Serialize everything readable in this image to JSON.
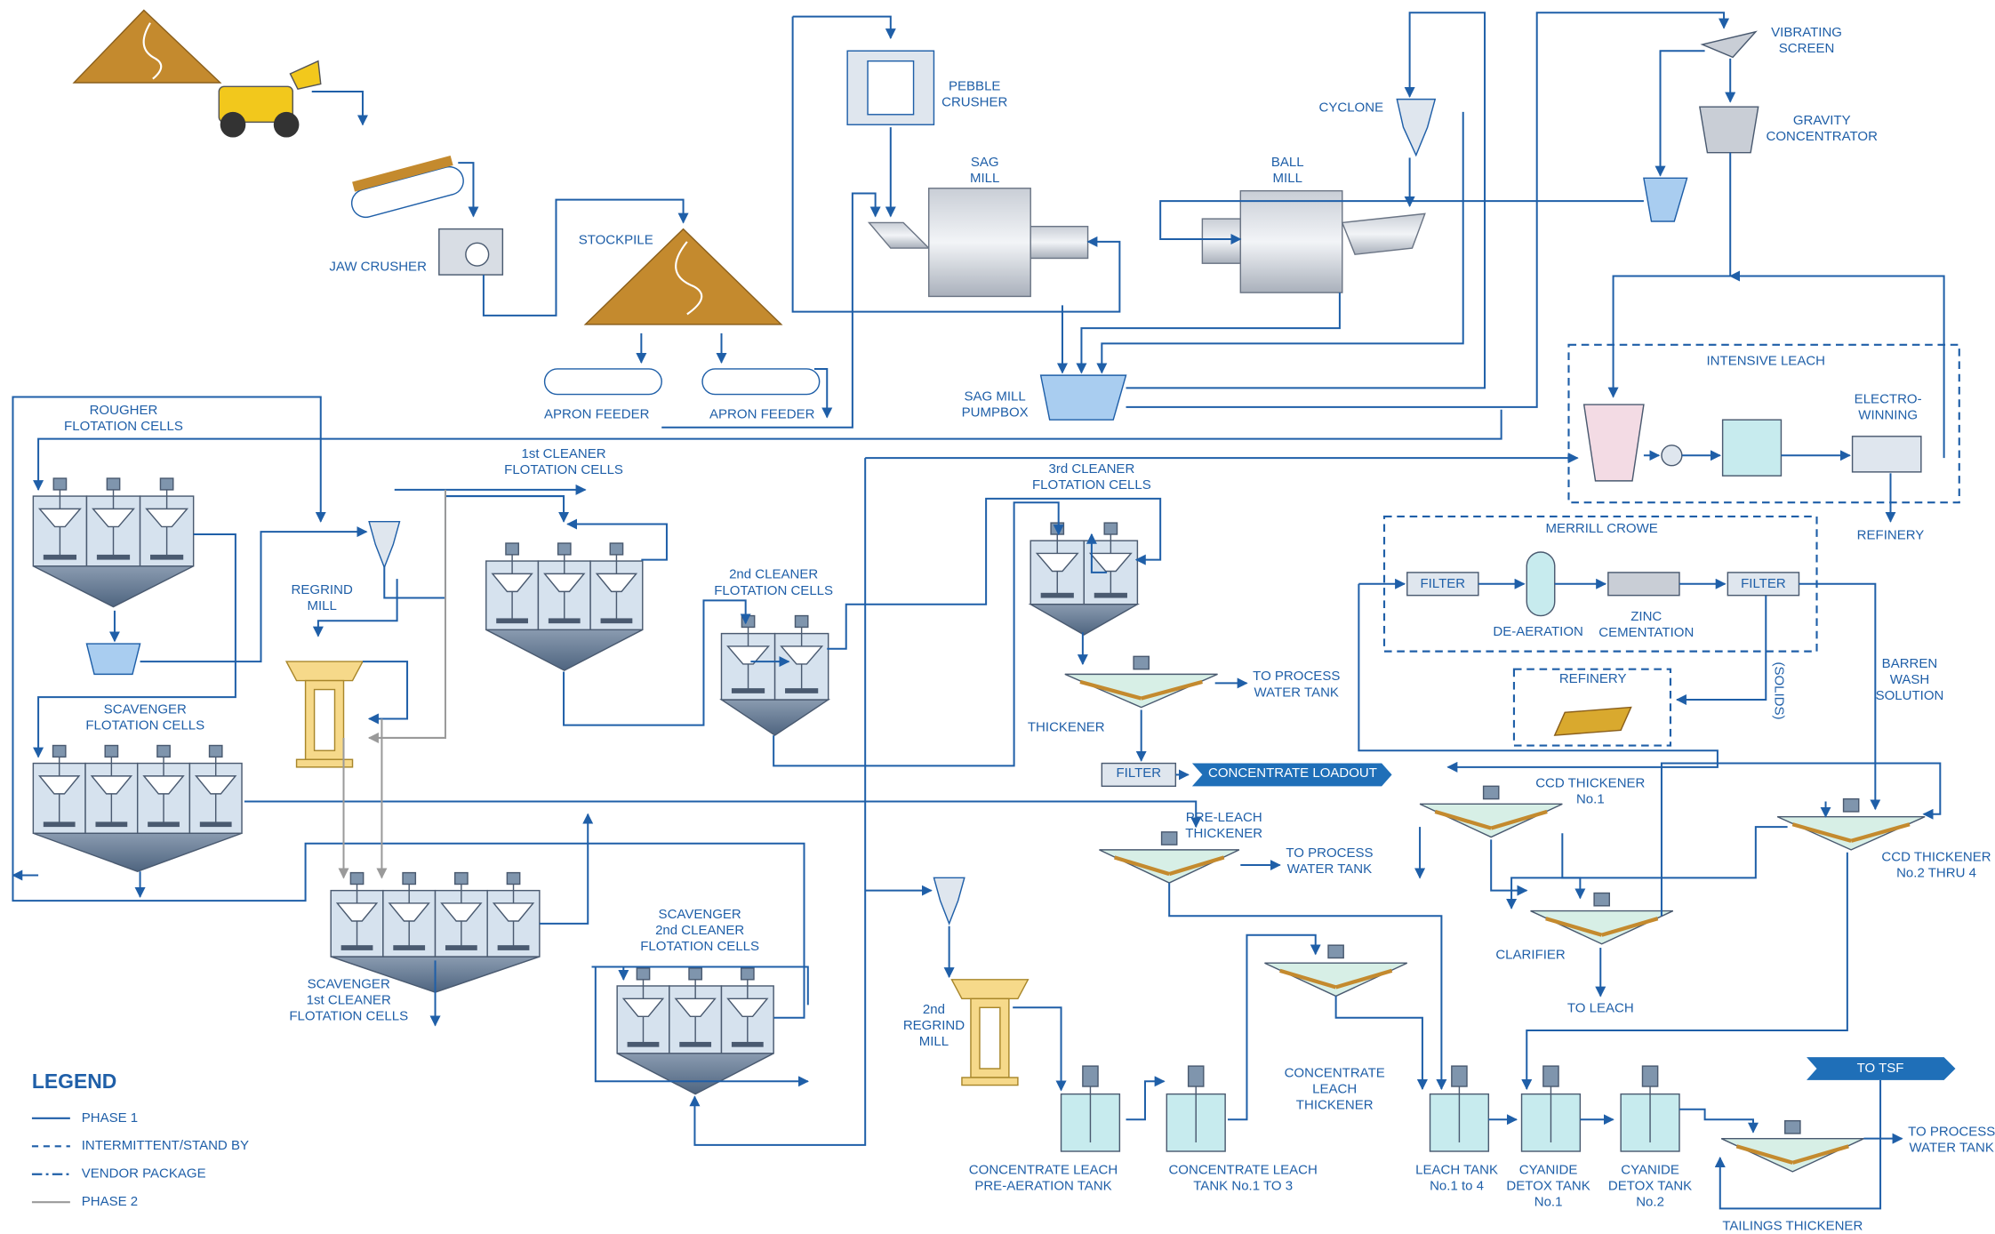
{
  "labels": [
    {
      "lines": [
        "JAW CRUSHER"
      ]
    },
    {
      "lines": [
        "STOCKPILE"
      ]
    },
    {
      "lines": [
        "PEBBLE",
        "CRUSHER"
      ]
    },
    {
      "lines": [
        "SAG",
        "MILL"
      ]
    },
    {
      "lines": [
        "BALL",
        "MILL"
      ]
    },
    {
      "lines": [
        "CYCLONE"
      ]
    },
    {
      "lines": [
        "VIBRATING",
        "SCREEN"
      ]
    },
    {
      "lines": [
        "GRAVITY",
        "CONCENTRATOR"
      ]
    },
    {
      "lines": [
        "APRON FEEDER"
      ]
    },
    {
      "lines": [
        "APRON FEEDER"
      ]
    },
    {
      "lines": [
        "SAG MILL",
        "PUMPBOX"
      ]
    },
    {
      "lines": [
        "INTENSIVE LEACH"
      ]
    },
    {
      "lines": [
        "ELECTRO-",
        "WINNING"
      ]
    },
    {
      "lines": [
        "REFINERY"
      ]
    },
    {
      "lines": [
        "ROUGHER",
        "FLOTATION CELLS"
      ]
    },
    {
      "lines": [
        "1st CLEANER",
        "FLOTATION CELLS"
      ]
    },
    {
      "lines": [
        "3rd CLEANER",
        "FLOTATION CELLS"
      ]
    },
    {
      "lines": [
        "REGRIND",
        "MILL"
      ]
    },
    {
      "lines": [
        "2nd CLEANER",
        "FLOTATION CELLS"
      ]
    },
    {
      "lines": [
        "MERRILL CROWE"
      ]
    },
    {
      "lines": [
        "FILTER"
      ]
    },
    {
      "lines": [
        "DE-AERATION"
      ]
    },
    {
      "lines": [
        "ZINC",
        "CEMENTATION"
      ]
    },
    {
      "lines": [
        "FILTER"
      ]
    },
    {
      "lines": [
        "REFINERY"
      ]
    },
    {
      "lines": [
        "(SOLIDS)"
      ]
    },
    {
      "lines": [
        "BARREN",
        "WASH",
        "SOLUTION"
      ]
    },
    {
      "lines": [
        "SCAVENGER",
        "FLOTATION CELLS"
      ]
    },
    {
      "lines": [
        "TO PROCESS",
        "WATER TANK"
      ]
    },
    {
      "lines": [
        "THICKENER"
      ]
    },
    {
      "lines": [
        "FILTER"
      ]
    },
    {
      "lines": [
        "CONCENTRATE LOADOUT"
      ]
    },
    {
      "lines": [
        "CCD THICKENER",
        "No.1"
      ]
    },
    {
      "lines": [
        "PRE-LEACH",
        "THICKENER"
      ]
    },
    {
      "lines": [
        "TO PROCESS",
        "WATER TANK"
      ]
    },
    {
      "lines": [
        "CCD THICKENER",
        "No.2 THRU 4"
      ]
    },
    {
      "lines": [
        "CLARIFIER"
      ]
    },
    {
      "lines": [
        "SCAVENGER",
        "2nd CLEANER",
        "FLOTATION CELLS"
      ]
    },
    {
      "lines": [
        "SCAVENGER",
        "1st CLEANER",
        "FLOTATION CELLS"
      ]
    },
    {
      "lines": [
        "TO LEACH"
      ]
    },
    {
      "lines": [
        "2nd",
        "REGRIND",
        "MILL"
      ]
    },
    {
      "lines": [
        "CONCENTRATE",
        "LEACH",
        "THICKENER"
      ]
    },
    {
      "lines": [
        "TO TSF"
      ]
    },
    {
      "lines": [
        "TO PROCESS",
        "WATER TANK"
      ]
    },
    {
      "lines": [
        "CONCENTRATE LEACH",
        "PRE-AERATION TANK"
      ]
    },
    {
      "lines": [
        "CONCENTRATE LEACH",
        "TANK No.1 TO 3"
      ]
    },
    {
      "lines": [
        "LEACH TANK",
        "No.1 to 4"
      ]
    },
    {
      "lines": [
        "CYANIDE",
        "DETOX TANK",
        "No.1"
      ]
    },
    {
      "lines": [
        "CYANIDE",
        "DETOX TANK",
        "No.2"
      ]
    },
    {
      "lines": [
        "TAILINGS THICKENER"
      ]
    }
  ],
  "legend": {
    "title": "LEGEND",
    "items": [
      "PHASE 1",
      "INTERMITTENT/STAND BY",
      "VENDOR PACKAGE",
      "PHASE 2"
    ]
  }
}
